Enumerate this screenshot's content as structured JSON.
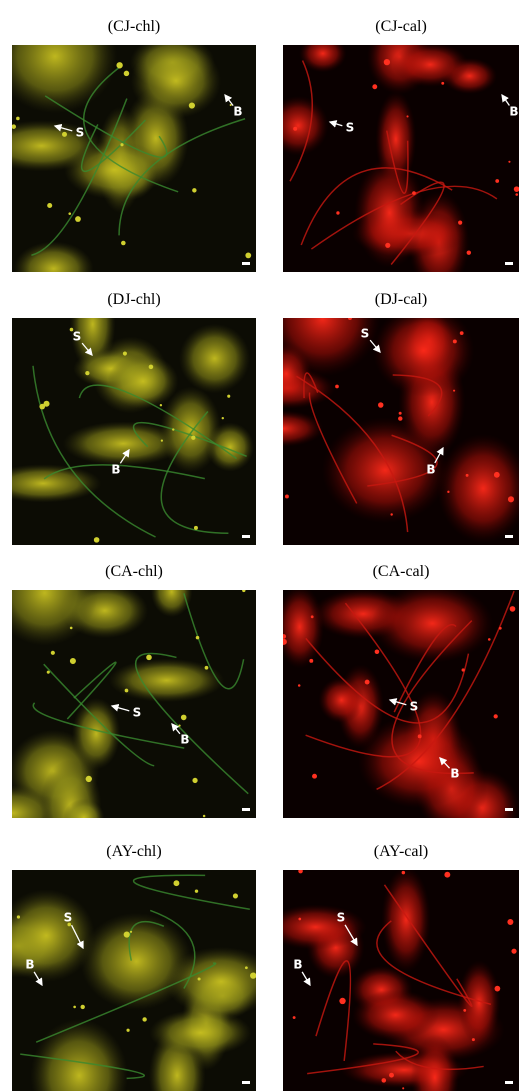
{
  "panels": [
    {
      "label": "(CJ-chl)",
      "annotations": [
        "S",
        "B"
      ]
    },
    {
      "label": "(CJ-cal)",
      "annotations": [
        "S",
        "B"
      ]
    },
    {
      "label": "(DJ-chl)",
      "annotations": [
        "S",
        "B"
      ]
    },
    {
      "label": "(DJ-cal)",
      "annotations": [
        "S",
        "B"
      ]
    },
    {
      "label": "(CA-chl)",
      "annotations": [
        "S",
        "B"
      ]
    },
    {
      "label": "(CA-cal)",
      "annotations": [
        "S",
        "B"
      ]
    },
    {
      "label": "(AY-chl)",
      "annotations": [
        "S",
        "B"
      ]
    },
    {
      "label": "(AY-cal)",
      "annotations": [
        "S",
        "B"
      ]
    }
  ]
}
